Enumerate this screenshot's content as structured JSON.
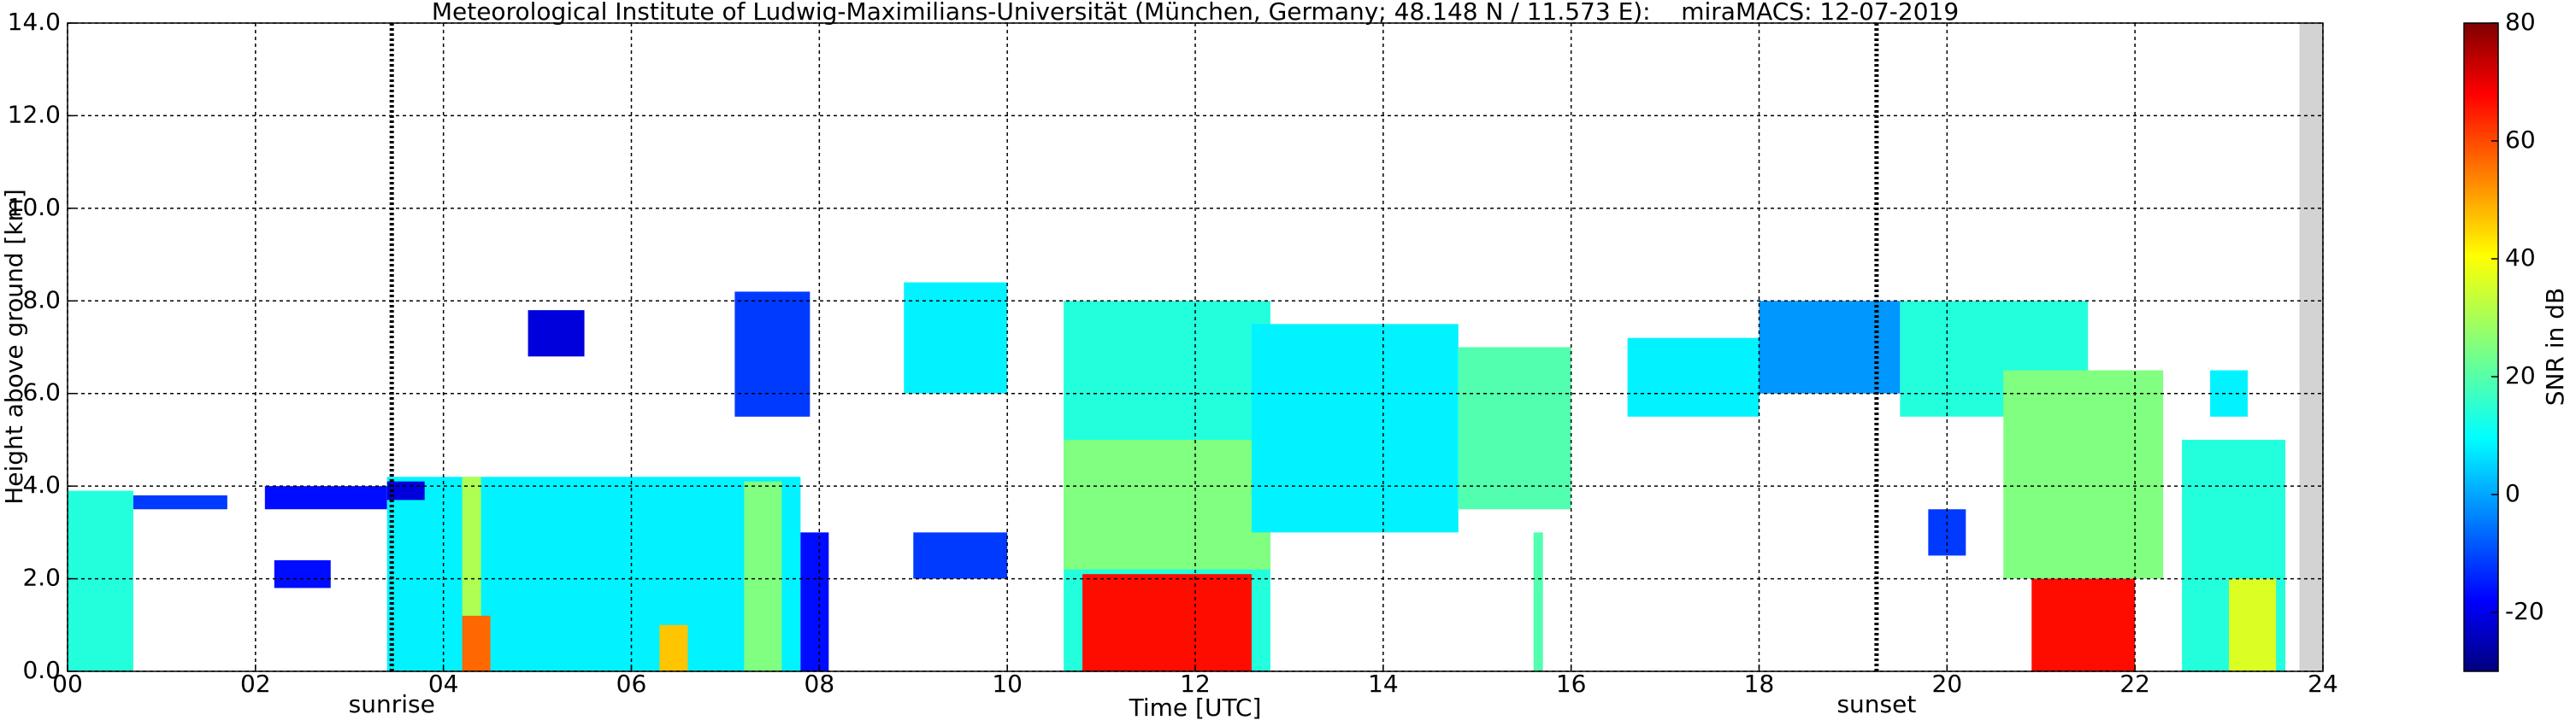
{
  "chart_data": {
    "type": "heatmap",
    "title": "Meteorological Institute of Ludwig-Maximilians-Universität (München, Germany; 48.148 N / 11.573 E):    miraMACS: 12-07-2019",
    "x_label": "Time [UTC]",
    "y_label": "Height above ground [km]",
    "colorbar_label": "SNR in dB",
    "xlim": [
      0,
      24
    ],
    "xticks": [
      {
        "value": 0,
        "label": "00"
      },
      {
        "value": 2,
        "label": "02"
      },
      {
        "value": 4,
        "label": "04"
      },
      {
        "value": 6,
        "label": "06"
      },
      {
        "value": 8,
        "label": "08"
      },
      {
        "value": 10,
        "label": "10"
      },
      {
        "value": 12,
        "label": "12"
      },
      {
        "value": 14,
        "label": "14"
      },
      {
        "value": 16,
        "label": "16"
      },
      {
        "value": 18,
        "label": "18"
      },
      {
        "value": 20,
        "label": "20"
      },
      {
        "value": 22,
        "label": "22"
      },
      {
        "value": 24,
        "label": "24"
      }
    ],
    "ylim": [
      0,
      14
    ],
    "yticks": [
      {
        "value": 0,
        "label": "0.0"
      },
      {
        "value": 2,
        "label": "2.0"
      },
      {
        "value": 4,
        "label": "4.0"
      },
      {
        "value": 6,
        "label": "6.0"
      },
      {
        "value": 8,
        "label": "8.0"
      },
      {
        "value": 10,
        "label": "10.0"
      },
      {
        "value": 12,
        "label": "12.0"
      },
      {
        "value": 14,
        "label": "14.0"
      }
    ],
    "clim": [
      -30,
      80
    ],
    "cticks": [
      -20,
      0,
      20,
      40,
      60,
      80
    ],
    "grid": true,
    "colormap": "jet",
    "no_data": [
      23.75,
      24
    ],
    "annotations": [
      {
        "label": "sunrise",
        "x": 3.45
      },
      {
        "label": "sunset",
        "x": 19.25
      }
    ],
    "cells": [
      [
        0.0,
        0.7,
        0,
        3.9,
        15
      ],
      [
        0.7,
        1.7,
        3.5,
        3.8,
        -10
      ],
      [
        2.1,
        3.4,
        3.5,
        4.0,
        -15
      ],
      [
        2.2,
        2.8,
        1.8,
        2.4,
        -15
      ],
      [
        3.4,
        7.8,
        0,
        4.2,
        10
      ],
      [
        3.4,
        3.8,
        3.7,
        4.1,
        -20
      ],
      [
        4.2,
        4.4,
        1.2,
        4.2,
        30
      ],
      [
        4.2,
        4.5,
        0,
        1.2,
        55
      ],
      [
        6.3,
        6.6,
        0,
        1,
        45
      ],
      [
        7.2,
        7.6,
        0,
        4.1,
        25
      ],
      [
        7.8,
        8.1,
        0,
        3,
        -15
      ],
      [
        9.0,
        10.0,
        2,
        3,
        -10
      ],
      [
        7.1,
        7.9,
        5.5,
        8.2,
        -10
      ],
      [
        4.9,
        5.5,
        6.8,
        7.8,
        -20
      ],
      [
        8.9,
        10.0,
        6,
        8.4,
        10
      ],
      [
        10.6,
        12.8,
        0,
        8,
        15
      ],
      [
        10.6,
        12.8,
        2.2,
        5,
        25
      ],
      [
        10.8,
        12.6,
        0,
        2.1,
        65
      ],
      [
        12.6,
        14.8,
        3,
        7.5,
        10
      ],
      [
        14.8,
        16.0,
        3.5,
        7,
        20
      ],
      [
        15.6,
        15.7,
        0,
        3,
        20
      ],
      [
        16.6,
        18.0,
        5.5,
        7.2,
        10
      ],
      [
        18.0,
        19.5,
        6,
        8,
        0
      ],
      [
        19.5,
        21.5,
        5.5,
        8,
        15
      ],
      [
        19.8,
        20.2,
        2.5,
        3.5,
        -10
      ],
      [
        20.6,
        22.3,
        2,
        6.5,
        25
      ],
      [
        20.9,
        22.0,
        0,
        2,
        65
      ],
      [
        22.5,
        23.6,
        0,
        5,
        15
      ],
      [
        22.8,
        23.2,
        5.5,
        6.5,
        10
      ],
      [
        23.0,
        23.5,
        0,
        2,
        35
      ]
    ]
  }
}
